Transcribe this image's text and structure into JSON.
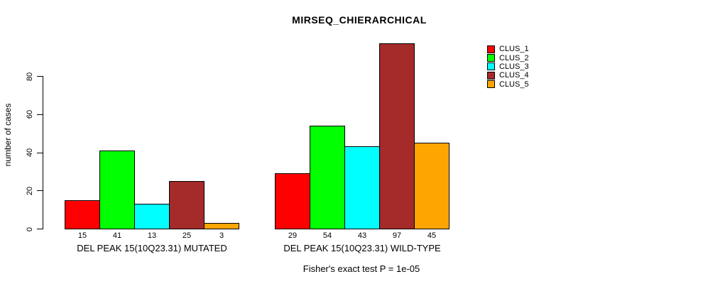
{
  "chart_data": {
    "type": "bar",
    "title": "MIRSEQ_CHIERARCHICAL",
    "ylabel": "number of cases",
    "xlabel": "",
    "annotation": "Fisher's exact test P = 1e-05",
    "yticks": [
      0,
      20,
      40,
      60,
      80
    ],
    "ylim": [
      0,
      100
    ],
    "grid": false,
    "legend_position": "right",
    "bar_border_color": "#000000",
    "series": [
      {
        "name": "CLUS_1",
        "color": "#FF0000"
      },
      {
        "name": "CLUS_2",
        "color": "#00FF00"
      },
      {
        "name": "CLUS_3",
        "color": "#00FFFF"
      },
      {
        "name": "CLUS_4",
        "color": "#A52A2A"
      },
      {
        "name": "CLUS_5",
        "color": "#FFA500"
      }
    ],
    "groups": [
      {
        "label": "DEL PEAK 15(10Q23.31) MUTATED",
        "values": [
          15,
          41,
          13,
          25,
          3
        ]
      },
      {
        "label": "DEL PEAK 15(10Q23.31) WILD-TYPE",
        "values": [
          29,
          54,
          43,
          97,
          45
        ]
      }
    ]
  },
  "legend": {
    "items": [
      {
        "label": "CLUS_1",
        "color": "#FF0000"
      },
      {
        "label": "CLUS_2",
        "color": "#00FF00"
      },
      {
        "label": "CLUS_3",
        "color": "#00FFFF"
      },
      {
        "label": "CLUS_4",
        "color": "#A52A2A"
      },
      {
        "label": "CLUS_5",
        "color": "#FFA500"
      }
    ]
  }
}
